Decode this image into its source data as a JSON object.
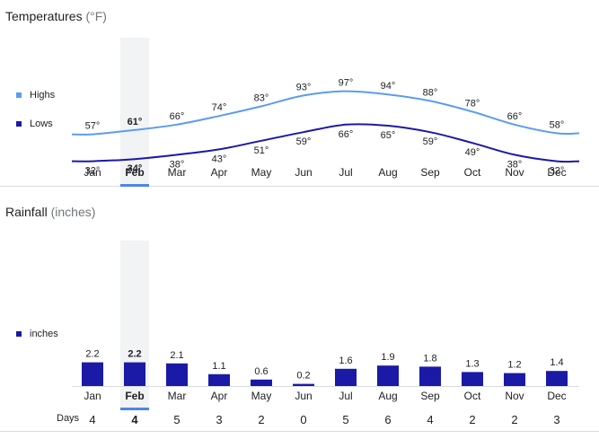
{
  "temperature": {
    "title": "Temperatures",
    "unit": "(°F)",
    "legend": [
      {
        "label": "Highs",
        "color": "#5b9cf0"
      },
      {
        "label": "Lows",
        "color": "#1a1aa6"
      }
    ]
  },
  "rainfall": {
    "title": "Rainfall",
    "unit": "(inches)",
    "legend": [
      {
        "label": "inches",
        "color": "#1a1aa6"
      }
    ]
  },
  "days_label": "Days",
  "selected_month": "Feb",
  "colors": {
    "highs": "#5b9cf0",
    "lows": "#1a1aa6",
    "bars": "#1a1aa6",
    "highlight": "#f1f3f4",
    "selected_underline": "#4a86e8"
  },
  "chart_data": [
    {
      "type": "line",
      "title": "Temperatures (°F)",
      "categories": [
        "Jan",
        "Feb",
        "Mar",
        "Apr",
        "May",
        "Jun",
        "Jul",
        "Aug",
        "Sep",
        "Oct",
        "Nov",
        "Dec"
      ],
      "series": [
        {
          "name": "Highs",
          "values": [
            57,
            61,
            66,
            74,
            83,
            93,
            97,
            94,
            88,
            78,
            66,
            58
          ],
          "labels": [
            "57°",
            "61°",
            "66°",
            "74°",
            "83°",
            "93°",
            "97°",
            "94°",
            "88°",
            "78°",
            "66°",
            "58°"
          ]
        },
        {
          "name": "Lows",
          "values": [
            32,
            34,
            38,
            43,
            51,
            59,
            66,
            65,
            59,
            49,
            38,
            32
          ],
          "labels": [
            "32°",
            "34°",
            "38°",
            "43°",
            "51°",
            "59°",
            "66°",
            "65°",
            "59°",
            "49°",
            "38°",
            "32°"
          ]
        }
      ],
      "ylim": [
        30,
        100
      ]
    },
    {
      "type": "bar",
      "title": "Rainfall (inches)",
      "categories": [
        "Jan",
        "Feb",
        "Mar",
        "Apr",
        "May",
        "Jun",
        "Jul",
        "Aug",
        "Sep",
        "Oct",
        "Nov",
        "Dec"
      ],
      "series": [
        {
          "name": "inches",
          "values": [
            2.2,
            2.2,
            2.1,
            1.1,
            0.6,
            0.2,
            1.6,
            1.9,
            1.8,
            1.3,
            1.2,
            1.4
          ],
          "labels": [
            "2.2",
            "2.2",
            "2.1",
            "1.1",
            "0.6",
            "0.2",
            "1.6",
            "1.9",
            "1.8",
            "1.3",
            "1.2",
            "1.4"
          ]
        }
      ],
      "rain_days": [
        "4",
        "4",
        "5",
        "3",
        "2",
        "0",
        "5",
        "6",
        "4",
        "2",
        "2",
        "3"
      ],
      "ylim": [
        0,
        2.5
      ]
    }
  ]
}
